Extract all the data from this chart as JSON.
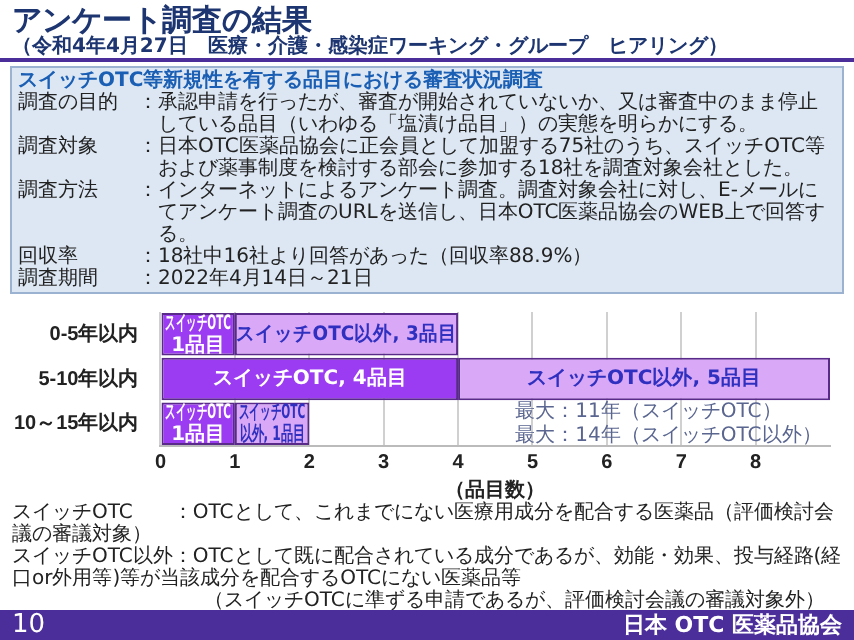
{
  "chart_data": {
    "type": "bar",
    "orientation": "horizontal",
    "stacked": true,
    "title": "アンケート調査の結果",
    "subtitle": "（令和4年4月27日　医療・介護・感染症ワーキング・グループ　ヒアリング）",
    "xlabel": "（品目数）",
    "categories": [
      "0-5年以内",
      "5-10年以内",
      "10～15年以内"
    ],
    "series": [
      {
        "color": "#9b3cf2",
        "values": [
          1,
          4,
          1
        ],
        "value_labels": [
          "スイッチOTC\n1品目",
          "スイッチOTC, 4品目",
          "スイッチOTC\n1品目"
        ]
      },
      {
        "color": "#d9a8f7",
        "values": [
          3,
          5,
          1
        ],
        "value_labels": [
          "スイッチOTC以外, 3品目",
          "スイッチOTC以外, 5品目",
          "スイッチOTC\n以外, 1品目"
        ]
      }
    ],
    "xlim": [
      0,
      9
    ],
    "xticks": [
      0,
      1,
      2,
      3,
      4,
      5,
      6,
      7,
      8
    ],
    "grid": "x",
    "annotations": [
      "スイッチOTC等新規性を有する品目における審査状況調査",
      "調査の目的　：",
      "承認申請を行ったが、審査が開始されていないか、又は審査中のまま停止している品目（いわゆる「塩漬け品目」）の実態を明らかにする。",
      "調査対象　　：",
      "日本OTC医薬品協会に正会員として加盟する75社のうち、スイッチOTC等および薬事制度を検討する部会に参加する18社を調査対象会社とした。",
      "調査方法　　：",
      "インターネットによるアンケート調査。調査対象会社に対し、E-メールにてアンケート調査のURLを送信し、日本OTC医薬品協会のWEB上で回答する。",
      "回収率　　　：",
      "18社中16社より回答があった（回収率88.9%）",
      "調査期間　　：",
      "2022年4月14日～21日",
      "最大：11年（スイッチOTC）",
      "最大：14年（スイッチOTC以外）",
      "スイッチOTC　　：OTCとして、これまでにない医療用成分を配合する医薬品（評価検討会議の審議対象）",
      "スイッチOTC以外：OTCとして既に配合されている成分であるが、効能・効果、投与経路(経口or外用等)等が当該成分を配合するOTCにない医薬品等",
      "（スイッチOTCに準ずる申請であるが、評価検討会議の審議対象外）",
      "10",
      "日本 OTC 医薬品協会"
    ]
  }
}
